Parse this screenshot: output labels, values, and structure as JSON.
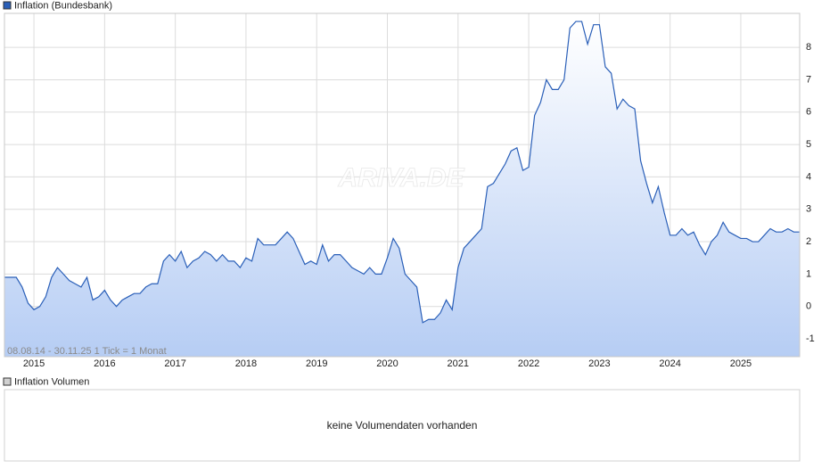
{
  "chart_data": {
    "type": "line",
    "legend_title": "Inflation (Bundesbank)",
    "range_note": "08.08.14 - 30.11.25   1 Tick = 1 Monat",
    "watermark": "ARIVA.DE",
    "volume_title": "Inflation Volumen",
    "volume_message": "keine Volumendaten vorhanden",
    "grid": true,
    "xlim": [
      2014.583,
      2025.833
    ],
    "xticks": [
      2015,
      2016,
      2017,
      2018,
      2019,
      2020,
      2021,
      2022,
      2023,
      2024,
      2025
    ],
    "ylim": [
      -1.55,
      9.05
    ],
    "yticks": [
      -1,
      0,
      1,
      2,
      3,
      4,
      5,
      6,
      7,
      8
    ],
    "x": [
      2014.583,
      2014.667,
      2014.75,
      2014.833,
      2014.917,
      2015,
      2015.083,
      2015.167,
      2015.25,
      2015.333,
      2015.417,
      2015.5,
      2015.583,
      2015.667,
      2015.75,
      2015.833,
      2015.917,
      2016,
      2016.083,
      2016.167,
      2016.25,
      2016.333,
      2016.417,
      2016.5,
      2016.583,
      2016.667,
      2016.75,
      2016.833,
      2016.917,
      2017,
      2017.083,
      2017.167,
      2017.25,
      2017.333,
      2017.417,
      2017.5,
      2017.583,
      2017.667,
      2017.75,
      2017.833,
      2017.917,
      2018,
      2018.083,
      2018.167,
      2018.25,
      2018.333,
      2018.417,
      2018.5,
      2018.583,
      2018.667,
      2018.75,
      2018.833,
      2018.917,
      2019,
      2019.083,
      2019.167,
      2019.25,
      2019.333,
      2019.417,
      2019.5,
      2019.583,
      2019.667,
      2019.75,
      2019.833,
      2019.917,
      2020,
      2020.083,
      2020.167,
      2020.25,
      2020.333,
      2020.417,
      2020.5,
      2020.583,
      2020.667,
      2020.75,
      2020.833,
      2020.917,
      2021,
      2021.083,
      2021.167,
      2021.25,
      2021.333,
      2021.417,
      2021.5,
      2021.583,
      2021.667,
      2021.75,
      2021.833,
      2021.917,
      2022,
      2022.083,
      2022.167,
      2022.25,
      2022.333,
      2022.417,
      2022.5,
      2022.583,
      2022.667,
      2022.75,
      2022.833,
      2022.917,
      2023,
      2023.083,
      2023.167,
      2023.25,
      2023.333,
      2023.417,
      2023.5,
      2023.583,
      2023.667,
      2023.75,
      2023.833,
      2023.917,
      2024,
      2024.083,
      2024.167,
      2024.25,
      2024.333,
      2024.417,
      2024.5,
      2024.583,
      2024.667,
      2024.75,
      2024.833,
      2024.917,
      2025,
      2025.083,
      2025.167,
      2025.25,
      2025.333,
      2025.417,
      2025.5,
      2025.583,
      2025.667,
      2025.75,
      2025.833
    ],
    "series": [
      {
        "name": "Inflation (Bundesbank)",
        "color": "#2a5fb8",
        "area_color": "#b6cdf4",
        "values": [
          0.9,
          0.9,
          0.9,
          0.6,
          0.1,
          -0.1,
          0.0,
          0.3,
          0.9,
          1.2,
          1.0,
          0.8,
          0.7,
          0.6,
          0.9,
          0.2,
          0.3,
          0.5,
          0.2,
          0.0,
          0.2,
          0.3,
          0.4,
          0.4,
          0.6,
          0.7,
          0.7,
          1.4,
          1.6,
          1.4,
          1.7,
          1.2,
          1.4,
          1.5,
          1.7,
          1.6,
          1.4,
          1.6,
          1.4,
          1.4,
          1.2,
          1.5,
          1.4,
          2.1,
          1.9,
          1.9,
          1.9,
          2.1,
          2.3,
          2.1,
          1.7,
          1.3,
          1.4,
          1.3,
          1.9,
          1.4,
          1.6,
          1.6,
          1.4,
          1.2,
          1.1,
          1.0,
          1.2,
          1.0,
          1.0,
          1.5,
          2.1,
          1.8,
          1.0,
          0.8,
          0.6,
          -0.5,
          -0.4,
          -0.4,
          -0.2,
          0.2,
          -0.1,
          1.2,
          1.8,
          2.0,
          2.2,
          2.4,
          3.7,
          3.8,
          4.1,
          4.4,
          4.8,
          4.9,
          4.2,
          4.3,
          5.9,
          6.3,
          7.0,
          6.7,
          6.7,
          7.0,
          8.6,
          8.8,
          8.8,
          8.1,
          8.7,
          8.7,
          7.4,
          7.2,
          6.1,
          6.4,
          6.2,
          6.1,
          4.5,
          3.8,
          3.2,
          3.7,
          2.9,
          2.2,
          2.2,
          2.4,
          2.2,
          2.3,
          1.9,
          1.6,
          2.0,
          2.2,
          2.6,
          2.3,
          2.2,
          2.1,
          2.1,
          2.0,
          2.0,
          2.2,
          2.4,
          2.3,
          2.3,
          2.4,
          2.3,
          2.3
        ]
      }
    ]
  }
}
